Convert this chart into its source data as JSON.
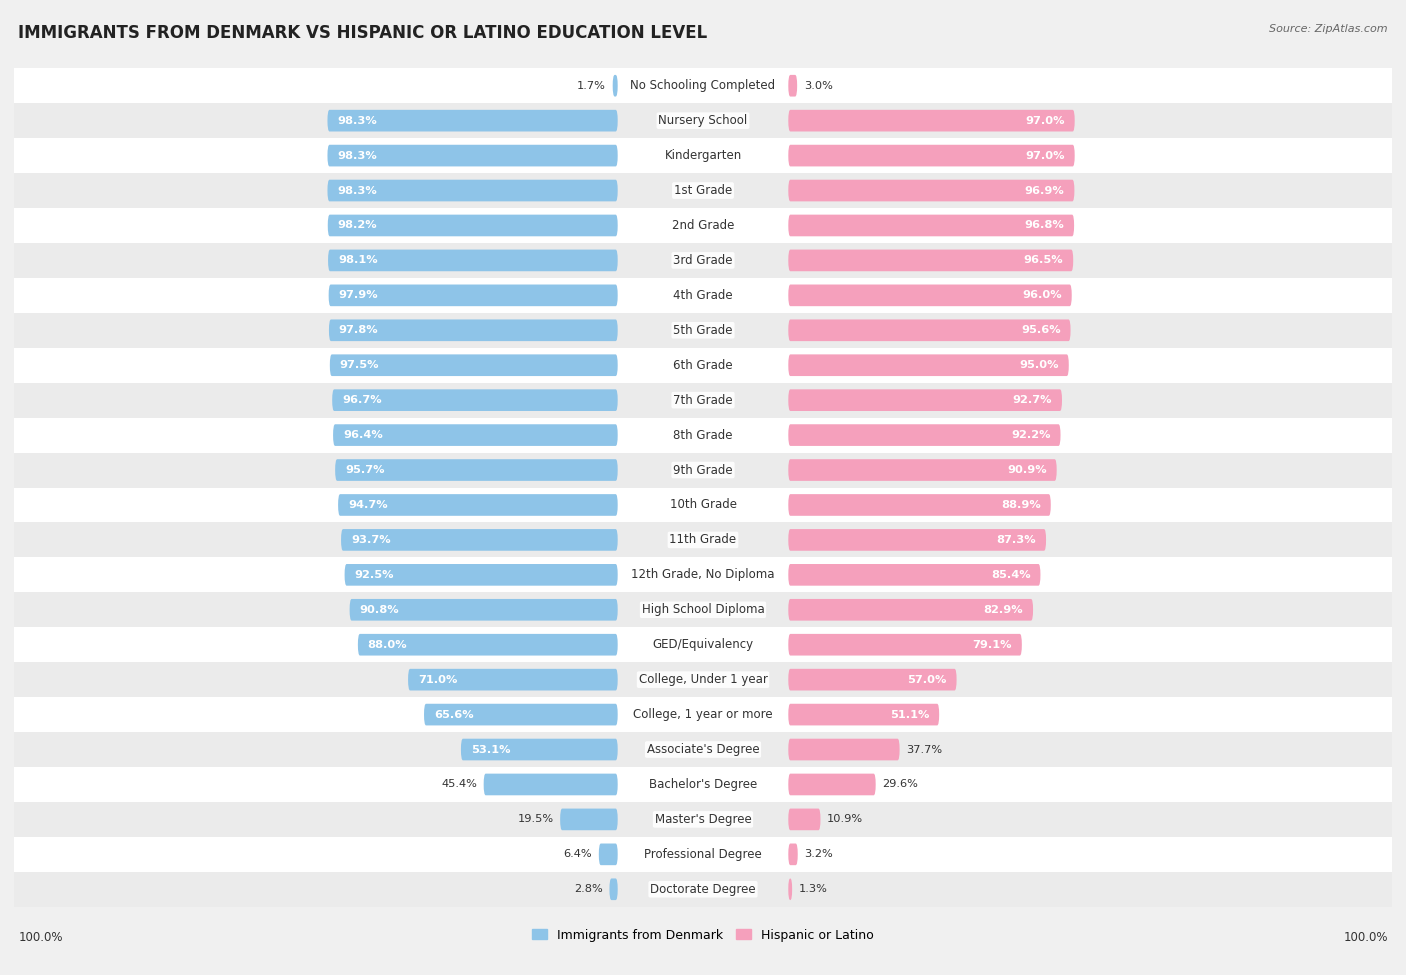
{
  "title": "IMMIGRANTS FROM DENMARK VS HISPANIC OR LATINO EDUCATION LEVEL",
  "source": "Source: ZipAtlas.com",
  "categories": [
    "No Schooling Completed",
    "Nursery School",
    "Kindergarten",
    "1st Grade",
    "2nd Grade",
    "3rd Grade",
    "4th Grade",
    "5th Grade",
    "6th Grade",
    "7th Grade",
    "8th Grade",
    "9th Grade",
    "10th Grade",
    "11th Grade",
    "12th Grade, No Diploma",
    "High School Diploma",
    "GED/Equivalency",
    "College, Under 1 year",
    "College, 1 year or more",
    "Associate's Degree",
    "Bachelor's Degree",
    "Master's Degree",
    "Professional Degree",
    "Doctorate Degree"
  ],
  "denmark_values": [
    1.7,
    98.3,
    98.3,
    98.3,
    98.2,
    98.1,
    97.9,
    97.8,
    97.5,
    96.7,
    96.4,
    95.7,
    94.7,
    93.7,
    92.5,
    90.8,
    88.0,
    71.0,
    65.6,
    53.1,
    45.4,
    19.5,
    6.4,
    2.8
  ],
  "hispanic_values": [
    3.0,
    97.0,
    97.0,
    96.9,
    96.8,
    96.5,
    96.0,
    95.6,
    95.0,
    92.7,
    92.2,
    90.9,
    88.9,
    87.3,
    85.4,
    82.9,
    79.1,
    57.0,
    51.1,
    37.7,
    29.6,
    10.9,
    3.2,
    1.3
  ],
  "denmark_color": "#8ec4e8",
  "hispanic_color": "#f5a0bc",
  "background_color": "#f0f0f0",
  "row_white": "#ffffff",
  "row_gray": "#ebebeb",
  "legend_denmark": "Immigrants from Denmark",
  "legend_hispanic": "Hispanic or Latino",
  "title_fontsize": 12,
  "label_fontsize": 8.5,
  "value_fontsize": 8.2
}
